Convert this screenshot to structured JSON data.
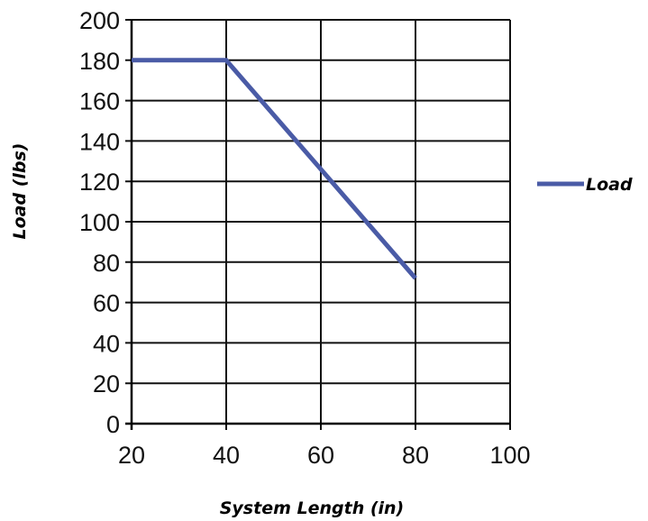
{
  "chart_data": {
    "type": "line",
    "title": "",
    "xlabel": "System Length (in)",
    "ylabel": "Load (lbs)",
    "xlim": [
      20,
      100
    ],
    "ylim": [
      0,
      200
    ],
    "x_ticks": [
      "20",
      "40",
      "60",
      "80",
      "100"
    ],
    "y_ticks": [
      "200",
      "180",
      "160",
      "140",
      "120",
      "100",
      "80",
      "60",
      "40",
      "20",
      "0"
    ],
    "grid": true,
    "legend_position": "right",
    "series": [
      {
        "name": "Load",
        "color": "#4a5ba6",
        "x": [
          20,
          40,
          80
        ],
        "y": [
          180,
          180,
          72
        ]
      }
    ]
  }
}
